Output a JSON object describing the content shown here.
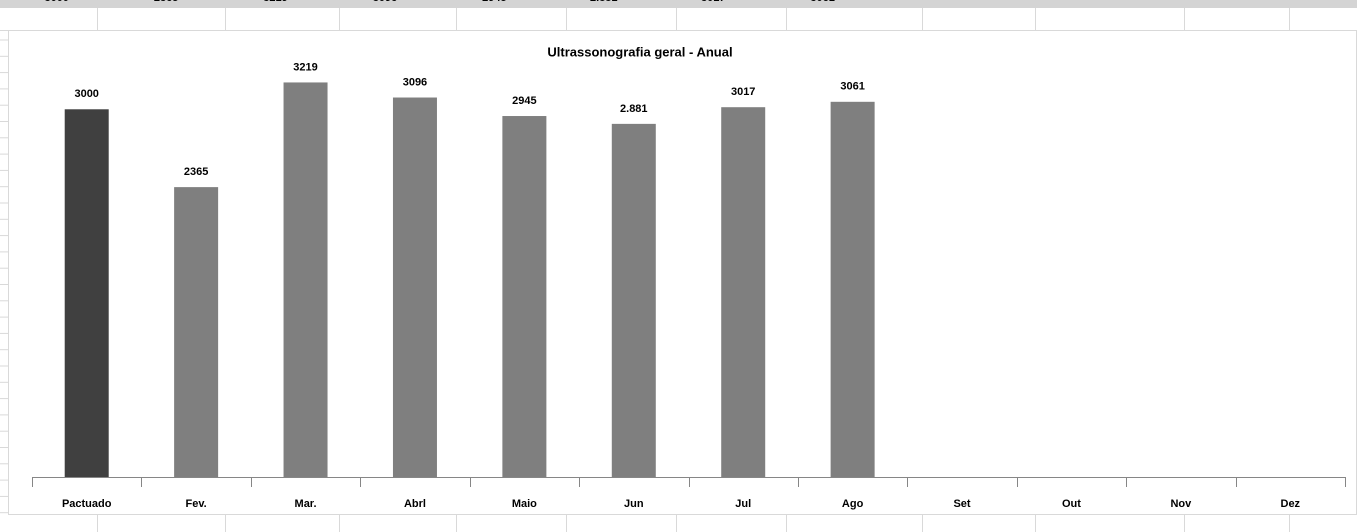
{
  "chart_data": {
    "type": "bar",
    "title": "Ultrassonografia geral - Anual",
    "categories": [
      "Pactuado",
      "Fev.",
      "Mar.",
      "Abrl",
      "Maio",
      "Jun",
      "Jul",
      "Ago",
      "Set",
      "Out",
      "Nov",
      "Dez"
    ],
    "values": [
      3000,
      2365,
      3219,
      3096,
      2945,
      2881,
      3017,
      3061,
      null,
      null,
      null,
      null
    ],
    "value_labels": [
      "3000",
      "2365",
      "3219",
      "3096",
      "2945",
      "2.881",
      "3017",
      "3061",
      null,
      null,
      null,
      null
    ],
    "colors": [
      "#404040",
      "#7f7f7f",
      "#7f7f7f",
      "#7f7f7f",
      "#7f7f7f",
      "#7f7f7f",
      "#7f7f7f",
      "#7f7f7f",
      "#7f7f7f",
      "#7f7f7f",
      "#7f7f7f",
      "#7f7f7f"
    ],
    "ylim": [
      0,
      3500
    ]
  }
}
